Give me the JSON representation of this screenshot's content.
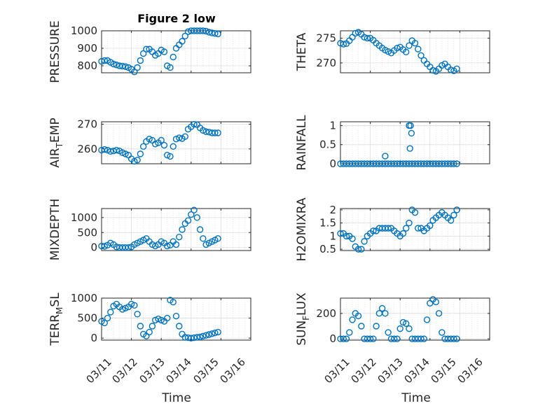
{
  "figure": {
    "title": "Figure 2 low",
    "marker_color": "#0072BD",
    "axis_color": "#262626",
    "grid": "on",
    "minor_grid": "on",
    "x_axis_type": "date"
  },
  "chart_data": [
    {
      "type": "scatter",
      "ylabel": "PRESSURE",
      "ylim": [
        760,
        1000
      ],
      "yticks": [
        800,
        900,
        1000
      ],
      "xlim": [
        "03/11",
        "03/16"
      ],
      "x_days": [
        0,
        0.1,
        0.2,
        0.3,
        0.4,
        0.5,
        0.6,
        0.7,
        0.8,
        0.9,
        1.0,
        1.1,
        1.2,
        1.3,
        1.4,
        1.5,
        1.6,
        1.7,
        1.8,
        1.9,
        2.0,
        2.1,
        2.2,
        2.3,
        2.4,
        2.5,
        2.6,
        2.7,
        2.8,
        2.9,
        3.0,
        3.1,
        3.2,
        3.3,
        3.4,
        3.5,
        3.6,
        3.7,
        3.8,
        3.9
      ],
      "values": [
        825,
        830,
        830,
        820,
        810,
        805,
        800,
        798,
        795,
        790,
        780,
        765,
        790,
        830,
        870,
        895,
        895,
        880,
        860,
        870,
        890,
        880,
        800,
        790,
        850,
        900,
        920,
        940,
        970,
        995,
        1000,
        1000,
        1000,
        1000,
        1000,
        998,
        992,
        988,
        985,
        982
      ]
    },
    {
      "type": "scatter",
      "ylabel": "THETA",
      "ylim": [
        268,
        276.5
      ],
      "yticks": [
        270,
        275
      ],
      "xlim": [
        "03/11",
        "03/16"
      ],
      "x_days": [
        0,
        0.1,
        0.2,
        0.3,
        0.4,
        0.5,
        0.6,
        0.7,
        0.8,
        0.9,
        1.0,
        1.1,
        1.2,
        1.3,
        1.4,
        1.5,
        1.6,
        1.7,
        1.8,
        1.9,
        2.0,
        2.1,
        2.2,
        2.3,
        2.4,
        2.5,
        2.6,
        2.7,
        2.8,
        2.9,
        3.0,
        3.1,
        3.2,
        3.3,
        3.4,
        3.5,
        3.6,
        3.7,
        3.8,
        3.9
      ],
      "values": [
        274,
        273.8,
        273.9,
        274.5,
        275.2,
        276,
        276.2,
        275.8,
        275.2,
        275,
        275,
        274.6,
        274,
        273.5,
        273,
        272.6,
        272.3,
        272,
        272.5,
        273,
        273.2,
        272.7,
        272.2,
        273.5,
        274.5,
        274,
        272.8,
        271.5,
        270.5,
        269.8,
        269.2,
        268.5,
        268.3,
        268.8,
        269.5,
        269.8,
        269.2,
        268.6,
        268.4,
        268.8
      ]
    },
    {
      "type": "scatter",
      "ylabel": "AIR_TEMP",
      "ylim": [
        254,
        271
      ],
      "yticks": [
        260,
        270
      ],
      "xlim": [
        "03/11",
        "03/16"
      ],
      "x_days": [
        0,
        0.1,
        0.2,
        0.3,
        0.4,
        0.5,
        0.6,
        0.7,
        0.8,
        0.9,
        1.0,
        1.1,
        1.2,
        1.3,
        1.4,
        1.5,
        1.6,
        1.7,
        1.8,
        1.9,
        2.0,
        2.1,
        2.2,
        2.3,
        2.4,
        2.5,
        2.6,
        2.7,
        2.8,
        2.9,
        3.0,
        3.1,
        3.2,
        3.3,
        3.4,
        3.5,
        3.6,
        3.7,
        3.8,
        3.9
      ],
      "values": [
        259.5,
        259.8,
        259.5,
        259,
        259.2,
        259.5,
        259.2,
        258.5,
        258,
        257.5,
        256,
        255,
        255.5,
        258,
        261,
        263,
        264,
        263.5,
        262,
        262.5,
        263.5,
        261.5,
        257.5,
        257,
        261,
        264,
        264.5,
        264.2,
        265,
        268,
        269,
        270,
        269.8,
        268.5,
        267.5,
        267,
        266.8,
        266.5,
        266.5,
        266.5
      ]
    },
    {
      "type": "scatter",
      "ylabel": "RAINFALL",
      "ylim": [
        0,
        1.1
      ],
      "yticks": [
        0,
        0.5,
        1
      ],
      "xlim": [
        "03/11",
        "03/16"
      ],
      "x_days": [
        0,
        0.1,
        0.2,
        0.3,
        0.4,
        0.5,
        0.6,
        0.7,
        0.8,
        0.9,
        1.0,
        1.1,
        1.2,
        1.3,
        1.4,
        1.5,
        1.6,
        1.7,
        1.8,
        1.9,
        2.0,
        2.1,
        2.2,
        2.3,
        2.4,
        2.5,
        2.6,
        2.7,
        2.8,
        2.9,
        3.0,
        3.1,
        3.2,
        3.3,
        3.4,
        3.5,
        3.6,
        3.7,
        3.8,
        3.9,
        1.5,
        2.3,
        2.35,
        2.33,
        2.38
      ],
      "values": [
        0,
        0,
        0,
        0,
        0,
        0,
        0,
        0,
        0,
        0,
        0,
        0,
        0,
        0,
        0,
        0,
        0,
        0,
        0,
        0,
        0,
        0,
        0,
        0,
        0,
        0,
        0,
        0,
        0,
        0,
        0,
        0,
        0,
        0,
        0,
        0,
        0,
        0,
        0,
        0,
        0.2,
        1,
        1,
        0.4,
        0.8
      ]
    },
    {
      "type": "scatter",
      "ylabel": "MIXDEPTH",
      "ylim": [
        -100,
        1300
      ],
      "yticks": [
        0,
        500,
        1000
      ],
      "xlim": [
        "03/11",
        "03/16"
      ],
      "x_days": [
        0,
        0.1,
        0.2,
        0.3,
        0.4,
        0.5,
        0.6,
        0.7,
        0.8,
        0.9,
        1.0,
        1.1,
        1.2,
        1.3,
        1.4,
        1.5,
        1.6,
        1.7,
        1.8,
        1.9,
        2.0,
        2.1,
        2.2,
        2.3,
        2.4,
        2.5,
        2.6,
        2.7,
        2.8,
        2.9,
        3.0,
        3.1,
        3.2,
        3.3,
        3.4,
        3.5,
        3.6,
        3.7,
        3.8,
        3.9
      ],
      "values": [
        50,
        40,
        80,
        150,
        100,
        20,
        0,
        0,
        0,
        0,
        20,
        100,
        150,
        200,
        250,
        300,
        200,
        100,
        50,
        100,
        200,
        150,
        50,
        80,
        200,
        100,
        350,
        600,
        800,
        900,
        1100,
        1250,
        1000,
        600,
        300,
        100,
        150,
        200,
        250,
        300
      ]
    },
    {
      "type": "scatter",
      "ylabel": "H2OMIXRA",
      "ylim": [
        0.45,
        2.05
      ],
      "yticks": [
        0.5,
        1,
        1.5,
        2
      ],
      "xlim": [
        "03/11",
        "03/16"
      ],
      "x_days": [
        0,
        0.1,
        0.2,
        0.3,
        0.4,
        0.5,
        0.6,
        0.7,
        0.8,
        0.9,
        1.0,
        1.1,
        1.2,
        1.3,
        1.4,
        1.5,
        1.6,
        1.7,
        1.8,
        1.9,
        2.0,
        2.1,
        2.2,
        2.3,
        2.4,
        2.5,
        2.6,
        2.7,
        2.8,
        2.9,
        3.0,
        3.1,
        3.2,
        3.3,
        3.4,
        3.5,
        3.6,
        3.7,
        3.8,
        3.9
      ],
      "values": [
        1.1,
        1.1,
        1,
        1,
        0.9,
        0.6,
        0.5,
        0.5,
        0.8,
        1,
        1.1,
        1.2,
        1.2,
        1.3,
        1.3,
        1.3,
        1.3,
        1.3,
        1.2,
        1.1,
        1.0,
        1.1,
        1.3,
        1.5,
        2,
        1.9,
        1.3,
        1.3,
        1.2,
        1.3,
        1.4,
        1.6,
        1.7,
        1.8,
        1.9,
        1.8,
        1.7,
        1.6,
        1.8,
        2
      ]
    },
    {
      "type": "scatter",
      "ylabel": "TERR_MSL",
      "ylim": [
        -50,
        1000
      ],
      "yticks": [
        0,
        500,
        1000
      ],
      "xlim": [
        "03/11",
        "03/16"
      ],
      "x_days": [
        0,
        0.1,
        0.2,
        0.3,
        0.4,
        0.5,
        0.6,
        0.7,
        0.8,
        0.9,
        1.0,
        1.1,
        1.2,
        1.3,
        1.4,
        1.5,
        1.6,
        1.7,
        1.8,
        1.9,
        2.0,
        2.1,
        2.2,
        2.3,
        2.4,
        2.5,
        2.6,
        2.7,
        2.8,
        2.9,
        3.0,
        3.1,
        3.2,
        3.3,
        3.4,
        3.5,
        3.6,
        3.7,
        3.8,
        3.9
      ],
      "values": [
        420,
        380,
        500,
        650,
        800,
        850,
        780,
        720,
        750,
        780,
        850,
        820,
        600,
        300,
        100,
        50,
        150,
        300,
        450,
        480,
        450,
        420,
        500,
        950,
        900,
        550,
        300,
        100,
        20,
        10,
        0,
        10,
        20,
        30,
        50,
        70,
        90,
        110,
        130,
        150
      ]
    },
    {
      "type": "scatter",
      "ylabel": "SUN_FLUX",
      "ylim": [
        -10,
        320
      ],
      "yticks": [
        0,
        200
      ],
      "xlim": [
        "03/11",
        "03/16"
      ],
      "x_days": [
        0,
        0.1,
        0.2,
        0.3,
        0.4,
        0.5,
        0.6,
        0.7,
        0.8,
        0.9,
        1.0,
        1.1,
        1.2,
        1.3,
        1.4,
        1.5,
        1.6,
        1.7,
        1.8,
        1.9,
        2.0,
        2.1,
        2.2,
        2.3,
        2.4,
        2.5,
        2.6,
        2.7,
        2.8,
        2.9,
        3.0,
        3.1,
        3.2,
        3.3,
        3.4,
        3.5,
        3.6,
        3.7,
        3.8,
        3.9
      ],
      "values": [
        0,
        0,
        0,
        50,
        150,
        200,
        180,
        100,
        0,
        0,
        0,
        0,
        100,
        200,
        240,
        200,
        50,
        0,
        0,
        0,
        80,
        130,
        120,
        80,
        0,
        0,
        0,
        0,
        0,
        150,
        280,
        310,
        290,
        200,
        50,
        0,
        0,
        0,
        0,
        0
      ]
    }
  ],
  "x_ticks": [
    "03/11",
    "03/12",
    "03/13",
    "03/14",
    "03/15",
    "03/16"
  ],
  "xlabel": "Time"
}
